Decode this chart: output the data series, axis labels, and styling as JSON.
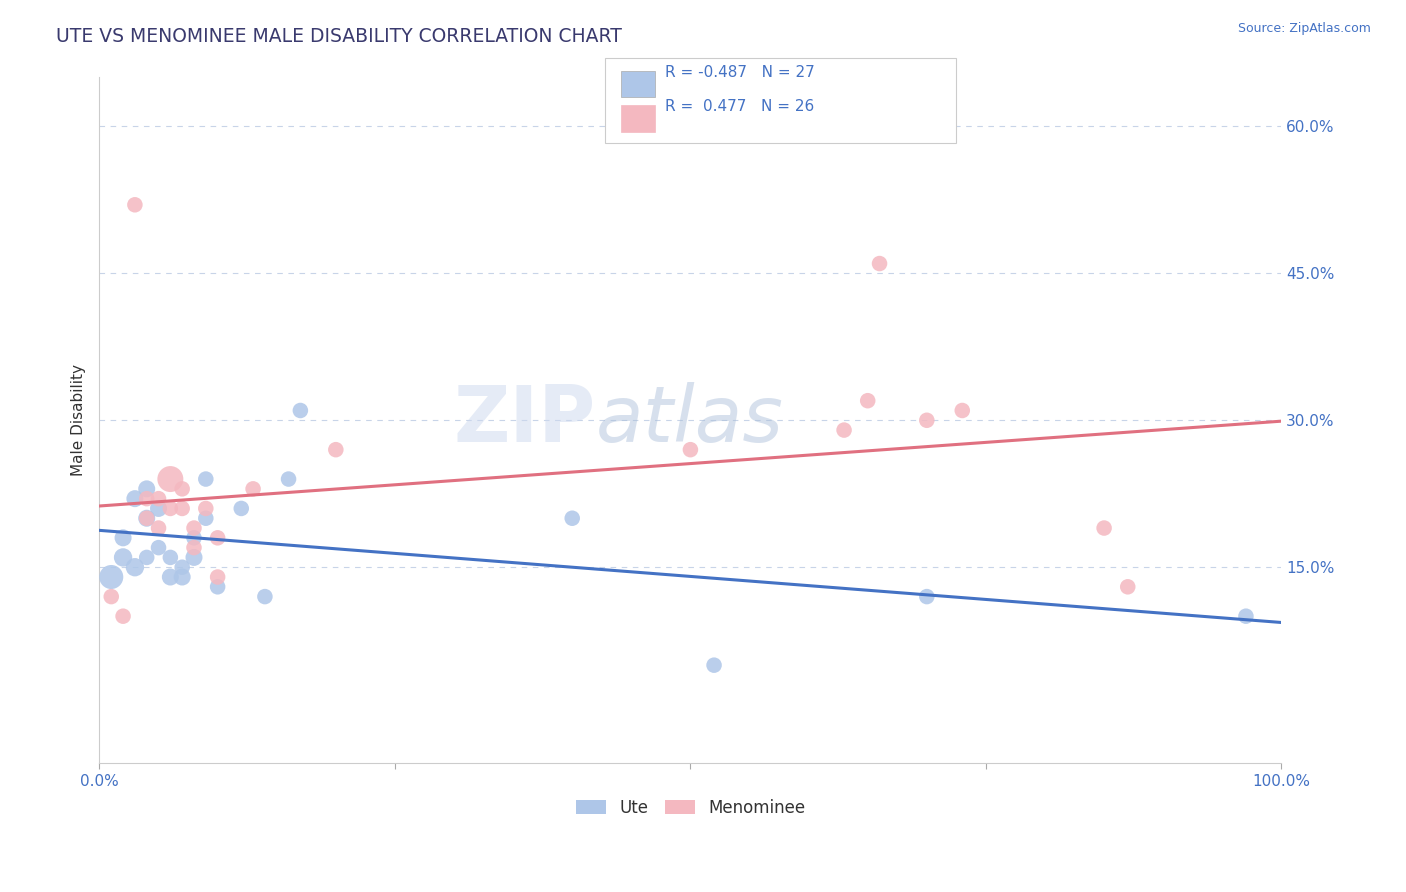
{
  "title": "UTE VS MENOMINEE MALE DISABILITY CORRELATION CHART",
  "source": "Source: ZipAtlas.com",
  "ylabel": "Male Disability",
  "watermark_zip": "ZIP",
  "watermark_atlas": "atlas",
  "xlim": [
    0.0,
    1.0
  ],
  "ylim": [
    -0.05,
    0.65
  ],
  "yticks": [
    0.15,
    0.3,
    0.45,
    0.6
  ],
  "ytick_labels": [
    "15.0%",
    "30.0%",
    "45.0%",
    "60.0%"
  ],
  "xticks": [
    0.0,
    0.25,
    0.5,
    0.75,
    1.0
  ],
  "xtick_labels": [
    "0.0%",
    "",
    "",
    "",
    "100.0%"
  ],
  "title_color": "#3a3a6e",
  "axis_color": "#4472c4",
  "background_color": "#ffffff",
  "grid_color": "#c8d4e8",
  "ute_color": "#aec6e8",
  "menominee_color": "#f4b8c0",
  "ute_line_color": "#4472c4",
  "menominee_line_color": "#e07080",
  "ute_x": [
    0.01,
    0.02,
    0.02,
    0.03,
    0.03,
    0.04,
    0.04,
    0.04,
    0.05,
    0.05,
    0.06,
    0.06,
    0.07,
    0.07,
    0.08,
    0.08,
    0.09,
    0.09,
    0.1,
    0.12,
    0.14,
    0.16,
    0.17,
    0.4,
    0.52,
    0.7,
    0.97
  ],
  "ute_y": [
    0.14,
    0.16,
    0.18,
    0.15,
    0.22,
    0.2,
    0.16,
    0.23,
    0.21,
    0.17,
    0.14,
    0.16,
    0.14,
    0.15,
    0.18,
    0.16,
    0.24,
    0.2,
    0.13,
    0.21,
    0.12,
    0.24,
    0.31,
    0.2,
    0.05,
    0.12,
    0.1
  ],
  "ute_size": [
    60,
    35,
    30,
    35,
    30,
    30,
    25,
    30,
    30,
    25,
    30,
    25,
    30,
    25,
    25,
    30,
    25,
    25,
    25,
    25,
    25,
    25,
    25,
    25,
    25,
    25,
    25
  ],
  "menominee_x": [
    0.01,
    0.02,
    0.03,
    0.04,
    0.04,
    0.05,
    0.05,
    0.06,
    0.06,
    0.07,
    0.07,
    0.08,
    0.08,
    0.09,
    0.1,
    0.1,
    0.13,
    0.2,
    0.5,
    0.63,
    0.65,
    0.66,
    0.7,
    0.73,
    0.85,
    0.87
  ],
  "menominee_y": [
    0.12,
    0.1,
    0.52,
    0.22,
    0.2,
    0.19,
    0.22,
    0.24,
    0.21,
    0.23,
    0.21,
    0.19,
    0.17,
    0.21,
    0.18,
    0.14,
    0.23,
    0.27,
    0.27,
    0.29,
    0.32,
    0.46,
    0.3,
    0.31,
    0.19,
    0.13
  ],
  "menominee_size": [
    25,
    25,
    25,
    25,
    25,
    25,
    25,
    70,
    25,
    25,
    25,
    25,
    25,
    25,
    25,
    25,
    25,
    25,
    25,
    25,
    25,
    25,
    25,
    25,
    25,
    25
  ]
}
